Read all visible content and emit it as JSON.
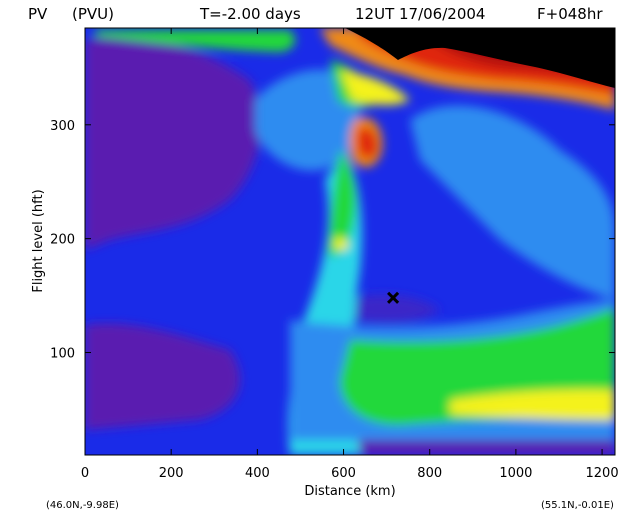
{
  "chart_data": {
    "type": "heatmap",
    "title": {
      "field": "PV",
      "units": "(PVU)",
      "time_offset": "T=-2.00 days",
      "valid_time": "12UT 17/06/2004",
      "forecast": "F+048hr"
    },
    "xlabel": "Distance  (km)",
    "ylabel": "Flight level  (hft)",
    "xlim": [
      0,
      1230
    ],
    "ylim": [
      10,
      385
    ],
    "x_ticks": [
      0,
      200,
      400,
      600,
      800,
      1000,
      1200
    ],
    "y_ticks": [
      100,
      200,
      300
    ],
    "start_point": "(46.0N,-9.98E)",
    "end_point": "(55.1N,-0.01E)",
    "marker": {
      "symbol": "x",
      "distance_km": 715,
      "flight_level_hft": 148
    },
    "colors": {
      "purple": "#5a1fb0",
      "blue": "#1a2be8",
      "light_blue": "#2f8cf0",
      "cyan": "#2bd6e8",
      "green": "#22d83a",
      "yellow": "#f4f21a",
      "orange": "#f08a14",
      "red": "#e0280f",
      "dark_red": "#b01008",
      "black": "#000000"
    }
  }
}
